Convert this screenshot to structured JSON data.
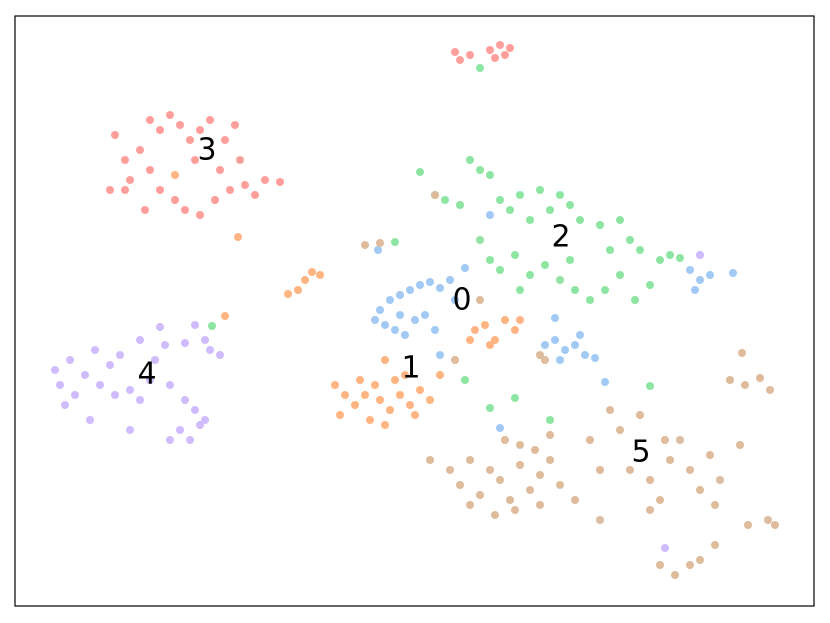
{
  "chart_data": {
    "type": "scatter",
    "xlim": [
      15,
      814
    ],
    "ylim": [
      606,
      16
    ],
    "series": [
      {
        "color": "#a1c9f4",
        "x": [
          380,
          390,
          400,
          410,
          420,
          430,
          440,
          450,
          385,
          395,
          405,
          415,
          425,
          435,
          400,
          375,
          455,
          465,
          490,
          378,
          545,
          555,
          565,
          575,
          585,
          560,
          580,
          595,
          690,
          700,
          710,
          695,
          733,
          605,
          500,
          555,
          440,
          700
        ],
        "y": [
          310,
          300,
          295,
          290,
          285,
          282,
          288,
          280,
          325,
          330,
          335,
          320,
          315,
          330,
          315,
          320,
          300,
          268,
          215,
          250,
          345,
          340,
          350,
          345,
          355,
          360,
          335,
          358,
          270,
          280,
          275,
          290,
          273,
          382,
          428,
          318,
          355,
          255
        ]
      },
      {
        "color": "#ffb482",
        "x": [
          335,
          345,
          340,
          355,
          365,
          375,
          380,
          390,
          400,
          410,
          370,
          385,
          395,
          405,
          420,
          430,
          415,
          385,
          360,
          475,
          485,
          495,
          505,
          515,
          490,
          470,
          520,
          288,
          298,
          305,
          312,
          320,
          225,
          238,
          175,
          440
        ],
        "y": [
          385,
          395,
          415,
          405,
          395,
          385,
          400,
          410,
          395,
          405,
          420,
          425,
          380,
          375,
          390,
          400,
          415,
          360,
          380,
          330,
          325,
          340,
          320,
          330,
          345,
          340,
          320,
          294,
          290,
          280,
          272,
          275,
          316,
          237,
          175,
          375
        ]
      },
      {
        "color": "#8de5a1",
        "x": [
          420,
          435,
          445,
          460,
          470,
          480,
          490,
          500,
          510,
          520,
          530,
          540,
          550,
          560,
          570,
          580,
          600,
          620,
          630,
          640,
          660,
          670,
          680,
          480,
          490,
          500,
          515,
          530,
          545,
          560,
          575,
          590,
          605,
          620,
          635,
          650,
          520,
          570,
          610,
          465,
          490,
          515,
          550,
          650,
          480,
          212,
          395
        ],
        "y": [
          172,
          195,
          200,
          205,
          160,
          170,
          175,
          200,
          210,
          195,
          220,
          190,
          210,
          195,
          205,
          220,
          225,
          220,
          240,
          250,
          260,
          255,
          258,
          240,
          260,
          270,
          255,
          275,
          265,
          280,
          290,
          300,
          290,
          275,
          300,
          285,
          290,
          260,
          250,
          380,
          408,
          398,
          420,
          386,
          68,
          326,
          242
        ]
      },
      {
        "color": "#ff9f9b",
        "x": [
          115,
          125,
          130,
          140,
          150,
          160,
          170,
          180,
          190,
          200,
          210,
          225,
          235,
          150,
          160,
          175,
          185,
          200,
          215,
          230,
          245,
          255,
          265,
          280,
          110,
          125,
          145,
          195,
          220,
          240,
          460,
          470,
          455,
          490,
          500,
          510,
          505,
          495
        ],
        "y": [
          135,
          160,
          180,
          150,
          120,
          130,
          115,
          125,
          140,
          130,
          120,
          140,
          125,
          170,
          190,
          200,
          210,
          215,
          200,
          190,
          185,
          195,
          180,
          182,
          190,
          190,
          210,
          160,
          170,
          160,
          60,
          55,
          52,
          50,
          45,
          48,
          55,
          58
        ]
      },
      {
        "color": "#d0bbff",
        "x": [
          55,
          60,
          70,
          75,
          85,
          95,
          100,
          110,
          120,
          130,
          140,
          150,
          155,
          165,
          170,
          185,
          195,
          200,
          180,
          170,
          190,
          205,
          130,
          115,
          65,
          90,
          210,
          220,
          205,
          195,
          160,
          185,
          140,
          700,
          665
        ],
        "y": [
          370,
          385,
          360,
          395,
          375,
          350,
          385,
          365,
          355,
          390,
          400,
          380,
          360,
          345,
          385,
          400,
          410,
          425,
          430,
          440,
          440,
          420,
          430,
          395,
          405,
          420,
          350,
          355,
          340,
          325,
          327,
          343,
          340,
          255,
          548
        ]
      },
      {
        "color": "#debb9b",
        "x": [
          450,
          460,
          470,
          480,
          490,
          500,
          510,
          520,
          530,
          540,
          550,
          560,
          505,
          520,
          535,
          550,
          470,
          495,
          515,
          540,
          575,
          600,
          610,
          620,
          630,
          650,
          660,
          670,
          680,
          690,
          700,
          710,
          715,
          720,
          740,
          650,
          665,
          600,
          590,
          640,
          730,
          745,
          760,
          770,
          742,
          660,
          675,
          690,
          700,
          715,
          768,
          775,
          748,
          365,
          380,
          435,
          545,
          540,
          455,
          480,
          430
        ],
        "y": [
          470,
          485,
          460,
          495,
          470,
          480,
          500,
          465,
          490,
          475,
          460,
          485,
          440,
          445,
          450,
          435,
          505,
          515,
          510,
          505,
          500,
          520,
          410,
          430,
          470,
          480,
          500,
          460,
          440,
          470,
          490,
          455,
          505,
          480,
          445,
          510,
          440,
          470,
          440,
          415,
          380,
          385,
          378,
          390,
          353,
          565,
          575,
          565,
          560,
          545,
          520,
          525,
          525,
          245,
          243,
          195,
          360,
          355,
          360,
          300,
          460
        ]
      }
    ],
    "annotations": [
      {
        "text": "0",
        "x": 462,
        "y": 301
      },
      {
        "text": "1",
        "x": 411,
        "y": 369
      },
      {
        "text": "2",
        "x": 561,
        "y": 238
      },
      {
        "text": "3",
        "x": 207,
        "y": 151
      },
      {
        "text": "4",
        "x": 147,
        "y": 375
      },
      {
        "text": "5",
        "x": 641,
        "y": 453
      }
    ]
  }
}
